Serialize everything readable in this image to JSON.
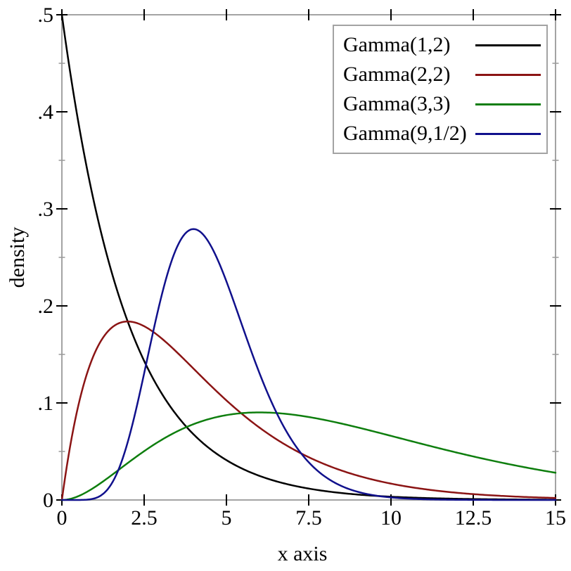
{
  "chart_data": {
    "type": "line",
    "title": "",
    "xlabel": "x axis",
    "ylabel": "density",
    "xlim": [
      0,
      15
    ],
    "ylim": [
      0,
      0.5
    ],
    "grid": false,
    "legend_position": "top-right",
    "frame_color": "#a3a3a3",
    "minor_tick_color": "#999999",
    "x_major_ticks": [
      {
        "value": 0,
        "label": "0"
      },
      {
        "value": 2.5,
        "label": "2.5"
      },
      {
        "value": 5,
        "label": "5"
      },
      {
        "value": 7.5,
        "label": "7.5"
      },
      {
        "value": 10,
        "label": "10"
      },
      {
        "value": 12.5,
        "label": "12.5"
      },
      {
        "value": 15,
        "label": "15"
      }
    ],
    "y_major_ticks": [
      {
        "value": 0,
        "label": "0"
      },
      {
        "value": 0.1,
        "label": ".1"
      },
      {
        "value": 0.2,
        "label": ".2"
      },
      {
        "value": 0.3,
        "label": ".3"
      },
      {
        "value": 0.4,
        "label": ".4"
      },
      {
        "value": 0.5,
        "label": ".5"
      }
    ],
    "y_minor_ticks": [
      0.05,
      0.15,
      0.25,
      0.35,
      0.45
    ],
    "sample_x": [
      0,
      1,
      2,
      3,
      4,
      5,
      6,
      7,
      8,
      9,
      10,
      11,
      12,
      13,
      14,
      15
    ],
    "series": [
      {
        "name": "Gamma(1,2)",
        "color": "#000000",
        "distribution": "gamma",
        "shape": 1,
        "scale": 2,
        "peak": {
          "x": 0,
          "y": 0.5
        },
        "values": [
          0.5,
          0.3033,
          0.1839,
          0.1116,
          0.0677,
          0.041,
          0.0249,
          0.0151,
          0.0092,
          0.0055,
          0.0034,
          0.002,
          0.0012,
          0.00075,
          0.00046,
          0.00028
        ]
      },
      {
        "name": "Gamma(2,2)",
        "color": "#8b1414",
        "distribution": "gamma",
        "shape": 2,
        "scale": 2,
        "peak": {
          "x": 2,
          "y": 0.1839
        },
        "values": [
          0,
          0.1516,
          0.1839,
          0.1673,
          0.1353,
          0.1026,
          0.0747,
          0.0528,
          0.0366,
          0.025,
          0.0168,
          0.0112,
          0.0074,
          0.0049,
          0.0032,
          0.0021
        ]
      },
      {
        "name": "Gamma(3,3)",
        "color": "#0e7e0e",
        "distribution": "gamma",
        "shape": 3,
        "scale": 3,
        "peak": {
          "x": 6,
          "y": 0.0902
        },
        "values": [
          0,
          0.0133,
          0.038,
          0.0613,
          0.0781,
          0.0875,
          0.0902,
          0.088,
          0.0823,
          0.0747,
          0.0661,
          0.0573,
          0.0488,
          0.0411,
          0.0341,
          0.0281
        ]
      },
      {
        "name": "Gamma(9,1/2)",
        "color": "#10108c",
        "distribution": "gamma",
        "shape": 9,
        "scale": 0.5,
        "peak": {
          "x": 4,
          "y": 0.2792
        },
        "values": [
          0,
          0.0017,
          0.0595,
          0.2065,
          0.2792,
          0.2252,
          0.131,
          0.0609,
          0.024,
          0.0083,
          0.0026,
          0.00076,
          0.00021,
          5.3e-05,
          1.3e-05,
          3e-06
        ]
      }
    ]
  }
}
